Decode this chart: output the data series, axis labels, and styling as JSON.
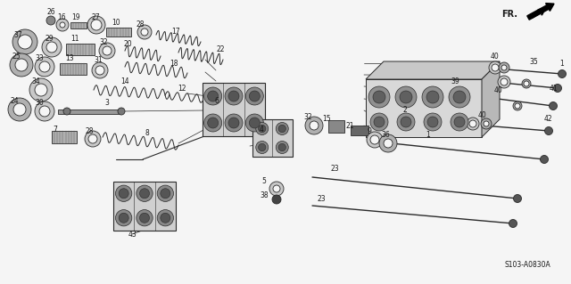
{
  "bg": "#f5f5f5",
  "lc": "#2a2a2a",
  "tc": "#1a1a1a",
  "diagram_code": "S103-A0830A",
  "fr_label": "FR.",
  "fig_width": 6.4,
  "fig_height": 3.19,
  "dpi": 100
}
